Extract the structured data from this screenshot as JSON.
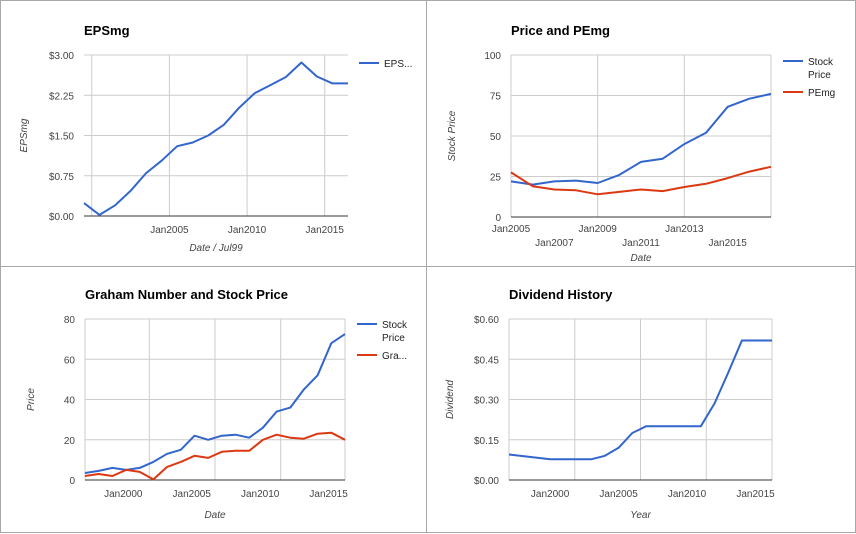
{
  "chart_data": [
    {
      "type": "line",
      "title": "EPSmg",
      "xlabel": "Date / Jul99",
      "ylabel": "EPSmg",
      "x_ticks": [
        {
          "label": "Jan2005",
          "x": 2005
        },
        {
          "label": "Jan2010",
          "x": 2010
        },
        {
          "label": "Jan2015",
          "x": 2015
        }
      ],
      "y_ticks": [
        "$0.00",
        "$0.75",
        "$1.50",
        "$2.25",
        "$3.00"
      ],
      "y_tick_values": [
        0,
        0.75,
        1.5,
        2.25,
        3.0
      ],
      "xlim": [
        1999.5,
        2016.5
      ],
      "ylim": [
        0,
        3.0
      ],
      "x_gridlines": [
        2000,
        2005,
        2010,
        2015
      ],
      "legend_position": "right",
      "series": [
        {
          "name": "EPS...",
          "color": "#3366cc",
          "x": [
            1999.5,
            2000.5,
            2001.5,
            2002.5,
            2003.5,
            2004.5,
            2005.5,
            2006.5,
            2007.5,
            2008.5,
            2009.5,
            2010.5,
            2011.5,
            2012.5,
            2013.5,
            2014.5,
            2015.5,
            2016.5
          ],
          "y": [
            0.24,
            0.02,
            0.2,
            0.47,
            0.8,
            1.03,
            1.3,
            1.37,
            1.5,
            1.7,
            2.02,
            2.29,
            2.44,
            2.59,
            2.86,
            2.6,
            2.47,
            2.47
          ]
        }
      ]
    },
    {
      "type": "line",
      "title": "Price and PEmg",
      "xlabel": "Date",
      "ylabel": "Stock Price",
      "x_ticks": [
        {
          "label": "Jan2005",
          "x": 2005,
          "row": 1
        },
        {
          "label": "Jan2007",
          "x": 2007,
          "row": 2
        },
        {
          "label": "Jan2009",
          "x": 2009,
          "row": 1
        },
        {
          "label": "Jan2011",
          "x": 2011,
          "row": 2
        },
        {
          "label": "Jan2013",
          "x": 2013,
          "row": 1
        },
        {
          "label": "Jan2015",
          "x": 2015,
          "row": 2
        }
      ],
      "y_ticks": [
        "0",
        "25",
        "50",
        "75",
        "100"
      ],
      "y_tick_values": [
        0,
        25,
        50,
        75,
        100
      ],
      "xlim": [
        2005,
        2017
      ],
      "ylim": [
        0,
        100
      ],
      "x_gridlines": [
        2005,
        2009,
        2013,
        2017
      ],
      "legend_position": "right",
      "series": [
        {
          "name": "Stock Price",
          "color": "#3366cc",
          "x": [
            2005,
            2006,
            2007,
            2008,
            2009,
            2010,
            2011,
            2012,
            2013,
            2014,
            2015,
            2016,
            2017
          ],
          "y": [
            22,
            20,
            22,
            22.5,
            21,
            26,
            34,
            36,
            45,
            52,
            68,
            73,
            76
          ]
        },
        {
          "name": "PEmg",
          "color": "#dc3912",
          "x": [
            2005,
            2006,
            2007,
            2008,
            2009,
            2010,
            2011,
            2012,
            2013,
            2014,
            2015,
            2016,
            2017
          ],
          "y": [
            27.5,
            19,
            17,
            16.5,
            14,
            15.5,
            17,
            16,
            18.5,
            20.5,
            24,
            28,
            31
          ]
        }
      ]
    },
    {
      "type": "line",
      "title": "Graham Number and Stock Price",
      "xlabel": "Date",
      "ylabel": "Price",
      "x_ticks": [
        {
          "label": "Jan2000",
          "x": 2000
        },
        {
          "label": "Jan2005",
          "x": 2005
        },
        {
          "label": "Jan2010",
          "x": 2010
        },
        {
          "label": "Jan2015",
          "x": 2015
        }
      ],
      "y_ticks": [
        "0",
        "20",
        "40",
        "60",
        "80"
      ],
      "y_tick_values": [
        0,
        20,
        40,
        60,
        80
      ],
      "xlim": [
        1997.2,
        2016.2
      ],
      "ylim": [
        0,
        80
      ],
      "x_gridlines": [
        1997.2,
        2001.9,
        2006.7,
        2011.5,
        2016.2
      ],
      "legend_position": "right",
      "series": [
        {
          "name": "Stock Price",
          "color": "#3366cc",
          "x": [
            1997.2,
            1998.2,
            1999.2,
            2000.2,
            2001.2,
            2002.2,
            2003.2,
            2004.2,
            2005.2,
            2006.2,
            2007.2,
            2008.2,
            2009.2,
            2010.2,
            2011.2,
            2012.2,
            2013.2,
            2014.2,
            2015.2,
            2016.2
          ],
          "y": [
            3.5,
            4.5,
            6,
            5,
            6,
            9,
            13,
            15,
            22,
            20,
            22,
            22.5,
            21,
            26,
            34,
            36,
            45,
            52,
            68,
            72.5
          ]
        },
        {
          "name": "Gra...",
          "color": "#dc3912",
          "x": [
            1997.2,
            1998.2,
            1999.2,
            2000.2,
            2001.2,
            2002.2,
            2003.2,
            2004.2,
            2005.2,
            2006.2,
            2007.2,
            2008.2,
            2009.2,
            2010.2,
            2011.2,
            2012.2,
            2013.2,
            2014.2,
            2015.2,
            2016.2
          ],
          "y": [
            2,
            3,
            2,
            5,
            4,
            0.3,
            6.5,
            9,
            12,
            11,
            14,
            14.5,
            14.5,
            20,
            22.5,
            21,
            20.5,
            23,
            23.5,
            20
          ]
        }
      ]
    },
    {
      "type": "line",
      "title": "Dividend History",
      "xlabel": "Year",
      "ylabel": "Dividend",
      "x_ticks": [
        {
          "label": "Jan2000",
          "x": 2000
        },
        {
          "label": "Jan2005",
          "x": 2005
        },
        {
          "label": "Jan2010",
          "x": 2010
        },
        {
          "label": "Jan2015",
          "x": 2015
        }
      ],
      "y_ticks": [
        "$0.00",
        "$0.15",
        "$0.30",
        "$0.45",
        "$0.60"
      ],
      "y_tick_values": [
        0,
        0.15,
        0.3,
        0.45,
        0.6
      ],
      "xlim": [
        1997,
        2016.2
      ],
      "ylim": [
        0,
        0.6
      ],
      "x_gridlines": [
        1997,
        2001.8,
        2006.6,
        2011.4,
        2016.2
      ],
      "legend_position": "none",
      "series": [
        {
          "name": "",
          "color": "#3366cc",
          "x": [
            1997,
            2000,
            2002,
            2003,
            2004,
            2005,
            2006,
            2007,
            2008,
            2009,
            2010,
            2011,
            2012,
            2013,
            2014,
            2015,
            2016.2
          ],
          "y": [
            0.095,
            0.077,
            0.077,
            0.077,
            0.09,
            0.12,
            0.175,
            0.2,
            0.2,
            0.2,
            0.2,
            0.2,
            0.285,
            0.4,
            0.52,
            0.52,
            0.52
          ]
        }
      ]
    }
  ]
}
